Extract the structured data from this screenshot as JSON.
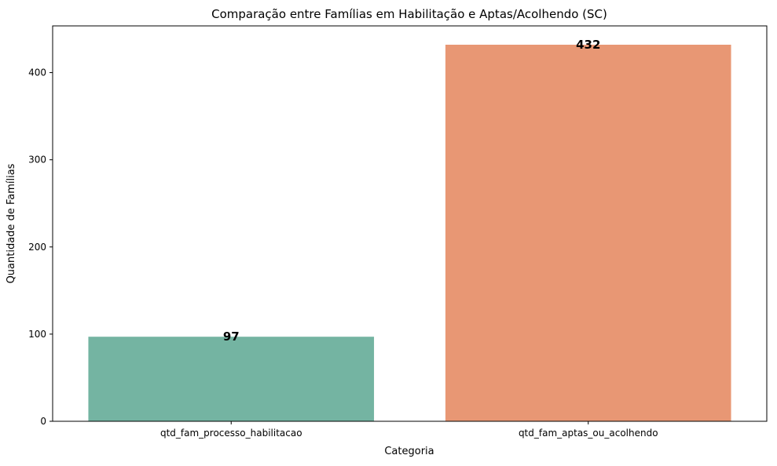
{
  "chart_data": {
    "type": "bar",
    "title": "Comparação entre Famílias em Habilitação e Aptas/Acolhendo (SC)",
    "xlabel": "Categoria",
    "ylabel": "Quantidade de Famílias",
    "categories": [
      "qtd_fam_processo_habilitacao",
      "qtd_fam_aptas_ou_acolhendo"
    ],
    "values": [
      97,
      432
    ],
    "data_labels": [
      "97",
      "432"
    ],
    "colors": [
      "#74b4a2",
      "#e89774"
    ],
    "ylim": [
      0,
      453.6
    ],
    "yticks": [
      0,
      100,
      200,
      300,
      400
    ],
    "grid": false,
    "legend": "none"
  }
}
